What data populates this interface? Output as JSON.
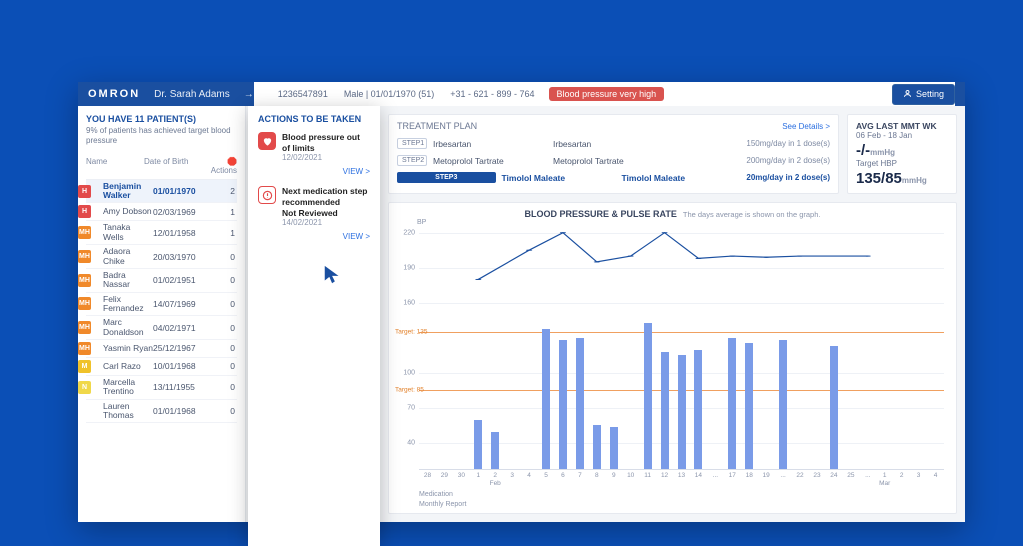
{
  "header": {
    "brand": "OMRON",
    "doctor": "Dr. Sarah Adams",
    "patient_id": "1236547891",
    "demo": "Male | 01/01/1970 (51)",
    "phone": "+31 - 621 - 899 - 764",
    "bp_status": "Blood pressure very high",
    "setting_label": "Setting"
  },
  "patients": {
    "title": "YOU HAVE 11 PATIENT(S)",
    "subtitle": "9% of patients has achieved target blood pressure",
    "columns": {
      "name": "Name",
      "dob": "Date of Birth",
      "actions": "Actions"
    },
    "badge_colors": {
      "H": "#e24a4a",
      "MH": "#f0892a",
      "M": "#f0c22a",
      "N": "#f0d84a"
    },
    "rows": [
      {
        "badge": "H",
        "name": "Benjamin Walker",
        "dob": "01/01/1970",
        "actions": "2",
        "selected": true
      },
      {
        "badge": "H",
        "name": "Amy Dobson",
        "dob": "02/03/1969",
        "actions": "1"
      },
      {
        "badge": "MH",
        "name": "Tanaka Wells",
        "dob": "12/01/1958",
        "actions": "1"
      },
      {
        "badge": "MH",
        "name": "Adaora Chike",
        "dob": "20/03/1970",
        "actions": "0"
      },
      {
        "badge": "MH",
        "name": "Badra Nassar",
        "dob": "01/02/1951",
        "actions": "0"
      },
      {
        "badge": "MH",
        "name": "Felix Fernandez",
        "dob": "14/07/1969",
        "actions": "0"
      },
      {
        "badge": "MH",
        "name": "Marc Donaldson",
        "dob": "04/02/1971",
        "actions": "0"
      },
      {
        "badge": "MH",
        "name": "Yasmin Ryan",
        "dob": "25/12/1967",
        "actions": "0"
      },
      {
        "badge": "M",
        "name": "Carl Razo",
        "dob": "10/01/1968",
        "actions": "0"
      },
      {
        "badge": "N",
        "name": "Marcella Trentino",
        "dob": "13/11/1955",
        "actions": "0"
      },
      {
        "badge": "",
        "name": "Lauren Thomas",
        "dob": "01/01/1968",
        "actions": "0"
      }
    ]
  },
  "actions_popup": {
    "title": "ACTIONS TO BE TAKEN",
    "items": [
      {
        "icon": "heart",
        "title": "Blood pressure out of limits",
        "date": "12/02/2021",
        "view": "VIEW >"
      },
      {
        "icon": "alert",
        "title": "Next medication step recommended",
        "sub": "Not Reviewed",
        "date": "14/02/2021",
        "view": "VIEW >"
      }
    ]
  },
  "plan": {
    "title": "TREATMENT PLAN",
    "details": "See Details >",
    "rows": [
      {
        "step": "STEP1",
        "med": "Irbesartan",
        "med2": "Irbesartan",
        "dose": "150mg/day in 1 dose(s)"
      },
      {
        "step": "STEP2",
        "med": "Metoprolol Tartrate",
        "med2": "Metoprolol Tartrate",
        "dose": "200mg/day in 2 dose(s)"
      },
      {
        "step": "STEP3",
        "med": "Timolol Maleate",
        "med2": "Timolol Maleate",
        "dose": "20mg/day in 2 dose(s)",
        "active": true
      }
    ]
  },
  "avg": {
    "title": "AVG LAST MMT WK",
    "range": "06 Feb - 18 Jan",
    "line1": "-/-",
    "unit1": "mmHg",
    "target": "Target HBP",
    "line2": "135/85",
    "unit2": "mmHg"
  },
  "chart": {
    "title": "BLOOD PRESSURE & PULSE RATE",
    "subtitle": "The days average is shown on the graph.",
    "axis_label": "BP",
    "y_ticks": [
      40,
      70,
      100,
      160,
      190,
      220
    ],
    "y_min": 40,
    "y_max": 230,
    "targets": [
      {
        "label": "Target: 135",
        "v": 135
      },
      {
        "label": "Target: 85",
        "v": 85
      }
    ],
    "x_days": [
      28,
      29,
      30,
      1,
      2,
      3,
      4,
      5,
      6,
      7,
      8,
      9,
      10,
      11,
      12,
      13,
      14,
      "...",
      17,
      18,
      19,
      "...",
      22,
      23,
      24,
      25,
      "...",
      1,
      2,
      3,
      4
    ],
    "x_months": [
      {
        "label": "Feb",
        "at": 4
      },
      {
        "label": "Mar",
        "at": 27
      }
    ],
    "bars": [
      {
        "i": 3,
        "v": 82
      },
      {
        "i": 4,
        "v": 72
      },
      {
        "i": 7,
        "v": 160
      },
      {
        "i": 8,
        "v": 150
      },
      {
        "i": 9,
        "v": 152
      },
      {
        "i": 10,
        "v": 78
      },
      {
        "i": 11,
        "v": 76
      },
      {
        "i": 13,
        "v": 165
      },
      {
        "i": 14,
        "v": 140
      },
      {
        "i": 15,
        "v": 138
      },
      {
        "i": 16,
        "v": 142
      },
      {
        "i": 18,
        "v": 152
      },
      {
        "i": 19,
        "v": 148
      },
      {
        "i": 21,
        "v": 150
      },
      {
        "i": 24,
        "v": 145
      }
    ],
    "line": [
      {
        "i": 3,
        "v": 180
      },
      {
        "i": 6,
        "v": 205
      },
      {
        "i": 8,
        "v": 220
      },
      {
        "i": 10,
        "v": 195
      },
      {
        "i": 12,
        "v": 200
      },
      {
        "i": 14,
        "v": 220
      },
      {
        "i": 16,
        "v": 198
      },
      {
        "i": 18,
        "v": 200
      },
      {
        "i": 20,
        "v": 199
      },
      {
        "i": 22,
        "v": 200
      },
      {
        "i": 26,
        "v": 200
      }
    ],
    "bar_color": "#7a9be8",
    "line_color": "#1a4fa0",
    "footer": {
      "medication": "Medication",
      "report": "Monthly Report"
    }
  }
}
